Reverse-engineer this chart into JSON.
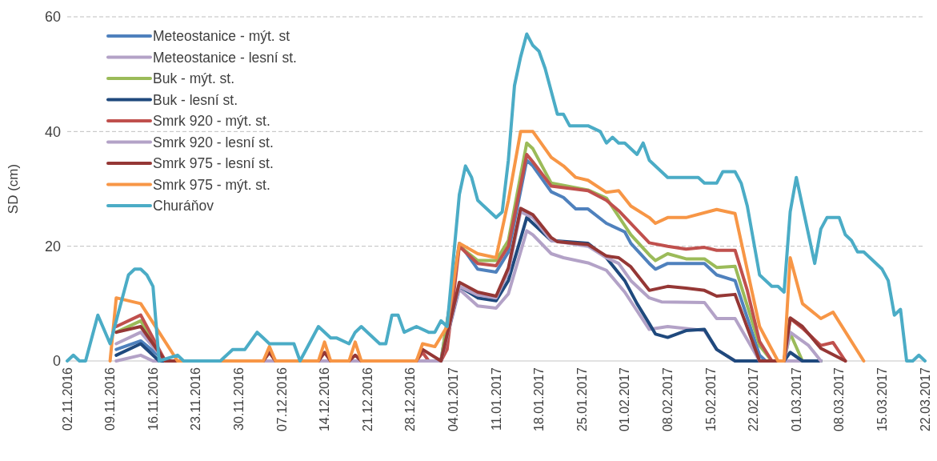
{
  "chart_data": {
    "type": "line",
    "ylabel": "SD (cm)",
    "grid": "y",
    "legend": "top left",
    "xlim": [
      "2016-11-02",
      "2017-03-22"
    ],
    "xticks": [
      {
        "value": "2016-11-02",
        "label": "02.11.2016"
      },
      {
        "value": "2016-11-09",
        "label": "09.11.2016"
      },
      {
        "value": "2016-11-16",
        "label": "16.11.2016"
      },
      {
        "value": "2016-11-23",
        "label": "23.11.2016"
      },
      {
        "value": "2016-11-30",
        "label": "30.11.2016"
      },
      {
        "value": "2016-12-07",
        "label": "07.12.2016"
      },
      {
        "value": "2016-12-14",
        "label": "14.12.2016"
      },
      {
        "value": "2016-12-21",
        "label": "21.12.2016"
      },
      {
        "value": "2016-12-28",
        "label": "28.12.2016"
      },
      {
        "value": "2017-01-04",
        "label": "04.01.2017"
      },
      {
        "value": "2017-01-11",
        "label": "11.01.2017"
      },
      {
        "value": "2017-01-18",
        "label": "18.01.2017"
      },
      {
        "value": "2017-01-25",
        "label": "25.01.2017"
      },
      {
        "value": "2017-02-01",
        "label": "01.02.2017"
      },
      {
        "value": "2017-02-08",
        "label": "08.02.2017"
      },
      {
        "value": "2017-02-15",
        "label": "15.02.2017"
      },
      {
        "value": "2017-02-22",
        "label": "22.02.2017"
      },
      {
        "value": "2017-03-01",
        "label": "01.03.2017"
      },
      {
        "value": "2017-03-08",
        "label": "08.03.2017"
      },
      {
        "value": "2017-03-15",
        "label": "15.03.2017"
      },
      {
        "value": "2017-03-22",
        "label": "22.03.2017"
      }
    ],
    "ylim": [
      0,
      60
    ],
    "yticks": [
      0,
      20,
      40,
      60
    ],
    "series": [
      {
        "name": "Meteostanice - mýt. st",
        "color": "#4f81bd",
        "x": [
          "2016-11-10",
          "2016-11-14",
          "2016-11-18",
          "2017-01-02",
          "2017-01-05",
          "2017-01-08",
          "2017-01-11",
          "2017-01-13",
          "2017-01-16",
          "2017-01-17",
          "2017-01-20",
          "2017-01-22",
          "2017-01-24",
          "2017-01-26",
          "2017-01-29",
          "2017-02-01",
          "2017-02-02",
          "2017-02-05",
          "2017-02-06",
          "2017-02-08",
          "2017-02-14",
          "2017-02-16",
          "2017-02-19",
          "2017-02-23",
          "2017-02-24",
          "2017-03-05"
        ],
        "values": [
          2,
          3.5,
          0,
          0,
          20.5,
          16,
          15.5,
          19,
          35,
          34,
          29.5,
          28.5,
          26.5,
          26.5,
          24,
          22.5,
          20.5,
          17,
          16,
          17,
          17,
          15,
          14,
          1,
          0,
          0
        ]
      },
      {
        "name": "Meteostanice - lesní st.",
        "color": "#b3a2c7",
        "x": [
          "2016-11-10",
          "2016-11-14",
          "2016-11-16",
          "2017-01-02",
          "2017-01-05",
          "2017-01-08",
          "2017-01-11",
          "2017-01-13",
          "2017-01-16",
          "2017-01-17",
          "2017-01-20",
          "2017-01-22",
          "2017-01-26",
          "2017-01-29",
          "2017-02-01",
          "2017-02-05",
          "2017-02-08",
          "2017-02-14",
          "2017-02-16",
          "2017-02-19",
          "2017-03-05"
        ],
        "values": [
          0,
          1,
          0,
          0,
          12.5,
          9.6,
          9.2,
          11.7,
          22.7,
          22,
          18.7,
          18,
          17.1,
          15.8,
          12,
          5.5,
          6,
          5.3,
          2,
          0,
          0
        ]
      },
      {
        "name": "Buk - mýt. st.",
        "color": "#9bbb59",
        "x": [
          "2016-11-10",
          "2016-11-14",
          "2016-11-18",
          "2017-01-02",
          "2017-01-05",
          "2017-01-08",
          "2017-01-11",
          "2017-01-13",
          "2017-01-16",
          "2017-01-17",
          "2017-01-20",
          "2017-01-26",
          "2017-01-29",
          "2017-02-02",
          "2017-02-05",
          "2017-02-06",
          "2017-02-08",
          "2017-02-11",
          "2017-02-14",
          "2017-02-16",
          "2017-02-19",
          "2017-02-23",
          "2017-02-25",
          "2017-02-27",
          "2017-02-28",
          "2017-03-02",
          "2017-03-05"
        ],
        "values": [
          5,
          7,
          0,
          0,
          20,
          17.5,
          17.5,
          21,
          38,
          37,
          31,
          29.8,
          28.4,
          22,
          18.5,
          17.5,
          18.7,
          17.8,
          17.8,
          16.3,
          16.5,
          2.7,
          0,
          0,
          4.8,
          0,
          0
        ]
      },
      {
        "name": "Buk - lesní st.",
        "color": "#1f497d",
        "x": [
          "2016-11-10",
          "2016-11-14",
          "2016-11-17",
          "2017-01-02",
          "2017-01-05",
          "2017-01-08",
          "2017-01-11",
          "2017-01-13",
          "2017-01-16",
          "2017-01-17",
          "2017-01-20",
          "2017-01-26",
          "2017-01-29",
          "2017-02-01",
          "2017-02-03",
          "2017-02-05",
          "2017-02-06",
          "2017-02-08",
          "2017-02-11",
          "2017-02-14",
          "2017-02-16",
          "2017-02-19",
          "2017-02-27",
          "2017-02-28",
          "2017-03-02",
          "2017-03-05"
        ],
        "values": [
          1,
          3,
          0,
          0,
          13,
          11,
          10.5,
          14,
          25,
          24,
          21,
          20.5,
          18,
          14,
          10,
          6.5,
          4.7,
          4.1,
          5.3,
          5.5,
          2,
          0,
          0,
          1.5,
          0,
          0
        ]
      },
      {
        "name": "Smrk 920 - mýt. st.",
        "color": "#c0504d",
        "x": [
          "2016-11-10",
          "2016-11-14",
          "2016-11-18",
          "2016-12-29",
          "2016-12-30",
          "2016-12-31",
          "2017-01-02",
          "2017-01-03",
          "2017-01-05",
          "2017-01-08",
          "2017-01-11",
          "2017-01-13",
          "2017-01-16",
          "2017-01-17",
          "2017-01-20",
          "2017-01-26",
          "2017-01-29",
          "2017-01-31",
          "2017-02-05",
          "2017-02-08",
          "2017-02-11",
          "2017-02-14",
          "2017-02-16",
          "2017-02-19",
          "2017-02-21",
          "2017-02-23",
          "2017-02-25",
          "2017-02-27",
          "2017-02-28",
          "2017-03-02",
          "2017-03-05",
          "2017-03-07",
          "2017-03-09"
        ],
        "values": [
          6,
          8,
          0,
          0,
          1.5,
          0,
          0,
          2,
          20,
          17,
          16.6,
          20,
          36,
          34.7,
          30.5,
          29.7,
          28,
          26.2,
          20.6,
          20,
          19.5,
          19.8,
          19.3,
          19.3,
          12.3,
          3.4,
          0,
          0,
          7.4,
          5.7,
          2.7,
          3.2,
          0
        ]
      },
      {
        "name": "Smrk 920 - lesní st.",
        "color": "#b3a2c7",
        "x": [
          "2016-11-10",
          "2016-11-14",
          "2016-11-18",
          "2017-01-02",
          "2017-01-05",
          "2017-01-08",
          "2017-01-11",
          "2017-01-13",
          "2017-01-15",
          "2017-01-17",
          "2017-01-20",
          "2017-01-26",
          "2017-01-29",
          "2017-01-31",
          "2017-02-02",
          "2017-02-05",
          "2017-02-07",
          "2017-02-14",
          "2017-02-16",
          "2017-02-19",
          "2017-02-23",
          "2017-02-27",
          "2017-02-28",
          "2017-03-03",
          "2017-03-05"
        ],
        "values": [
          3,
          5,
          0,
          0,
          13,
          11.5,
          11,
          15.5,
          26,
          25,
          21,
          20,
          18,
          17,
          14,
          11,
          10.3,
          10.2,
          7.4,
          7.4,
          0,
          0,
          5,
          2.7,
          0
        ]
      },
      {
        "name": "Smrk 975 - lesní st.",
        "color": "#953735",
        "x": [
          "2016-11-10",
          "2016-11-14",
          "2016-11-18",
          "2016-12-04",
          "2016-12-05",
          "2016-12-06",
          "2016-12-13",
          "2016-12-14",
          "2016-12-15",
          "2016-12-18",
          "2016-12-19",
          "2016-12-20",
          "2016-12-29",
          "2016-12-30",
          "2017-01-02",
          "2017-01-05",
          "2017-01-08",
          "2017-01-11",
          "2017-01-13",
          "2017-01-15",
          "2017-01-17",
          "2017-01-20",
          "2017-01-21",
          "2017-01-26",
          "2017-01-29",
          "2017-01-31",
          "2017-02-02",
          "2017-02-05",
          "2017-02-08",
          "2017-02-11",
          "2017-02-14",
          "2017-02-16",
          "2017-02-19",
          "2017-02-23",
          "2017-02-27",
          "2017-02-28",
          "2017-03-02",
          "2017-03-05",
          "2017-03-09"
        ],
        "values": [
          5,
          6,
          0,
          0,
          1.5,
          0,
          0,
          1.5,
          0,
          0,
          1,
          0,
          0,
          2,
          0,
          13.7,
          12,
          11.3,
          16.2,
          26.6,
          25.5,
          21.5,
          20.8,
          20.3,
          18.3,
          18,
          16.4,
          12.3,
          13,
          12.7,
          12.3,
          11.3,
          11.6,
          0,
          0,
          7.5,
          6,
          2.2,
          0
        ]
      },
      {
        "name": "Smrk 975 - mýt. st.",
        "color": "#f79646",
        "x": [
          "2016-11-09",
          "2016-11-10",
          "2016-11-14",
          "2016-11-17",
          "2016-11-20",
          "2016-12-04",
          "2016-12-05",
          "2016-12-06",
          "2016-12-13",
          "2016-12-14",
          "2016-12-15",
          "2016-12-18",
          "2016-12-19",
          "2016-12-20",
          "2016-12-29",
          "2016-12-30",
          "2017-01-01",
          "2017-01-03",
          "2017-01-05",
          "2017-01-08",
          "2017-01-11",
          "2017-01-13",
          "2017-01-15",
          "2017-01-17",
          "2017-01-20",
          "2017-01-22",
          "2017-01-24",
          "2017-01-26",
          "2017-01-29",
          "2017-01-31",
          "2017-02-02",
          "2017-02-05",
          "2017-02-06",
          "2017-02-08",
          "2017-02-11",
          "2017-02-16",
          "2017-02-19",
          "2017-02-23",
          "2017-02-26",
          "2017-02-27",
          "2017-02-28",
          "2017-03-02",
          "2017-03-05",
          "2017-03-07",
          "2017-03-12"
        ],
        "values": [
          0,
          11,
          10,
          5,
          0,
          0,
          2.5,
          0,
          0,
          3.3,
          0,
          0,
          3.3,
          0,
          0,
          3,
          2.5,
          6,
          20.5,
          18.7,
          18,
          28,
          40,
          40,
          35.5,
          34,
          32,
          31.5,
          29.4,
          29.7,
          27,
          25,
          24,
          25,
          25,
          26.4,
          25.7,
          6,
          0,
          0,
          18,
          10,
          7.4,
          8.5,
          0
        ]
      },
      {
        "name": "Churáňov",
        "color": "#4bacc6",
        "x": [
          "2016-11-02",
          "2016-11-03",
          "2016-11-04",
          "2016-11-05",
          "2016-11-07",
          "2016-11-09",
          "2016-11-12",
          "2016-11-13",
          "2016-11-14",
          "2016-11-15",
          "2016-11-16",
          "2016-11-17",
          "2016-11-20",
          "2016-11-21",
          "2016-11-27",
          "2016-11-29",
          "2016-12-01",
          "2016-12-03",
          "2016-12-04",
          "2016-12-05",
          "2016-12-09",
          "2016-12-10",
          "2016-12-13",
          "2016-12-15",
          "2016-12-16",
          "2016-12-18",
          "2016-12-19",
          "2016-12-20",
          "2016-12-21",
          "2016-12-23",
          "2016-12-24",
          "2016-12-25",
          "2016-12-26",
          "2016-12-27",
          "2016-12-29",
          "2016-12-31",
          "2017-01-01",
          "2017-01-02",
          "2017-01-03",
          "2017-01-05",
          "2017-01-06",
          "2017-01-07",
          "2017-01-08",
          "2017-01-09",
          "2017-01-11",
          "2017-01-12",
          "2017-01-13",
          "2017-01-14",
          "2017-01-15",
          "2017-01-16",
          "2017-01-17",
          "2017-01-18",
          "2017-01-19",
          "2017-01-21",
          "2017-01-22",
          "2017-01-23",
          "2017-01-26",
          "2017-01-28",
          "2017-01-29",
          "2017-01-30",
          "2017-01-31",
          "2017-02-01",
          "2017-02-03",
          "2017-02-04",
          "2017-02-05",
          "2017-02-08",
          "2017-02-13",
          "2017-02-14",
          "2017-02-16",
          "2017-02-17",
          "2017-02-19",
          "2017-02-20",
          "2017-02-21",
          "2017-02-23",
          "2017-02-25",
          "2017-02-26",
          "2017-02-27",
          "2017-02-28",
          "2017-03-01",
          "2017-03-04",
          "2017-03-05",
          "2017-03-06",
          "2017-03-08",
          "2017-03-09",
          "2017-03-10",
          "2017-03-11",
          "2017-03-12",
          "2017-03-15",
          "2017-03-16",
          "2017-03-17",
          "2017-03-18",
          "2017-03-19",
          "2017-03-20",
          "2017-03-21",
          "2017-03-22"
        ],
        "values": [
          0,
          1,
          0,
          0,
          8,
          3,
          15,
          16,
          16,
          15,
          13,
          0,
          1,
          0,
          0,
          2,
          2,
          5,
          4,
          3,
          3,
          0,
          6,
          4,
          4,
          3,
          5,
          6,
          5,
          3,
          3,
          8,
          8,
          5,
          6,
          5,
          5,
          7,
          6,
          29,
          34,
          32,
          28,
          27,
          25,
          26,
          35,
          48,
          53,
          57,
          55,
          54,
          51,
          43,
          43,
          41,
          41,
          40,
          38,
          39,
          38,
          38,
          36,
          38,
          35,
          32,
          32,
          31,
          31,
          33,
          33,
          31,
          27,
          15,
          13,
          13,
          12,
          26,
          32,
          17,
          23,
          25,
          25,
          22,
          21,
          19,
          19,
          16,
          14,
          8,
          9,
          0,
          0,
          1,
          0
        ]
      }
    ]
  }
}
